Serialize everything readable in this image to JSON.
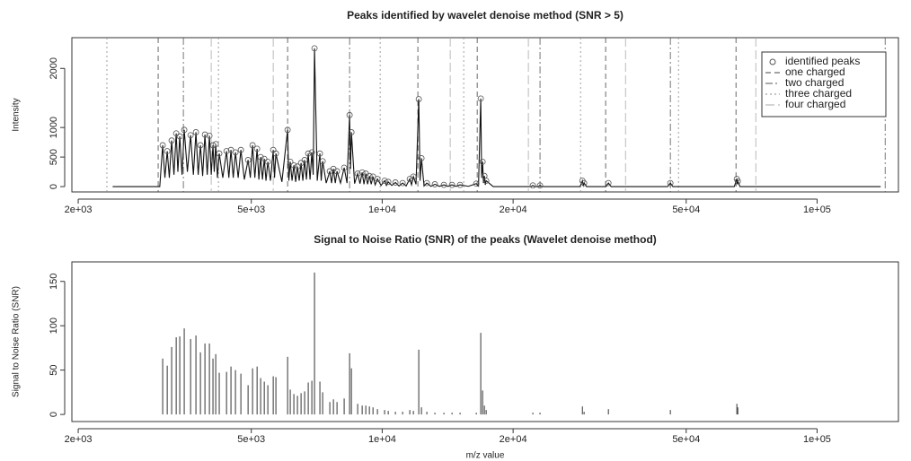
{
  "chart_data": [
    {
      "type": "line",
      "title": "Peaks identified by wavelet denoise method (SNR > 5)",
      "ylabel": "Intensity",
      "log_x": true,
      "xlim": [
        1934,
        153800
      ],
      "xticks": [
        {
          "value": 2000,
          "label": "2e+03"
        },
        {
          "value": 5000,
          "label": "5e+03"
        },
        {
          "value": 10000,
          "label": "1e+04"
        },
        {
          "value": 20000,
          "label": "2e+04"
        },
        {
          "value": 50000,
          "label": "5e+04"
        },
        {
          "value": 100000,
          "label": "1e+05"
        }
      ],
      "ylim": [
        -90,
        2520
      ],
      "yticks": [
        0,
        500,
        1000,
        2000
      ],
      "legend": "topright",
      "line": {
        "color": "#111111",
        "x": [
          2400,
          3080,
          3128,
          3165,
          3204,
          3240,
          3280,
          3320,
          3360,
          3390,
          3424,
          3465,
          3506,
          3565,
          3626,
          3680,
          3730,
          3775,
          3820,
          3865,
          3912,
          3960,
          4006,
          4045,
          4082,
          4110,
          4142,
          4180,
          4220,
          4300,
          4386,
          4440,
          4490,
          4545,
          4598,
          4665,
          4732,
          4820,
          4916,
          4975,
          5034,
          5095,
          5156,
          5205,
          5254,
          5305,
          5356,
          5405,
          5458,
          5535,
          5616,
          5655,
          5696,
          5880,
          6060,
          6100,
          6146,
          6205,
          6264,
          6325,
          6384,
          6445,
          6508,
          6570,
          6632,
          6695,
          6760,
          6825,
          6890,
          6940,
          6988,
          7090,
          7190,
          7240,
          7296,
          7435,
          7578,
          7650,
          7724,
          7800,
          7872,
          8020,
          8176,
          8300,
          8414,
          8455,
          8496,
          8640,
          8782,
          8890,
          8994,
          9080,
          9168,
          9255,
          9344,
          9435,
          9524,
          9635,
          9750,
          9940,
          10128,
          10225,
          10324,
          10520,
          10724,
          10930,
          11140,
          11350,
          11572,
          11680,
          11796,
          11960,
          12136,
          12220,
          12310,
          12480,
          12666,
          12940,
          13218,
          13540,
          13864,
          14170,
          14472,
          14780,
          15102,
          15780,
          16456,
          16650,
          16850,
          16930,
          17014,
          17095,
          17176,
          17260,
          17340,
          18000,
          22000,
          22200,
          22400,
          22850,
          23060,
          23300,
          28500,
          28860,
          29000,
          29120,
          29500,
          32700,
          33120,
          33600,
          45300,
          45980,
          46600,
          64500,
          65380,
          65540,
          65700,
          66500,
          140000
        ],
        "values": [
          0,
          0,
          700,
          150,
          600,
          150,
          780,
          200,
          900,
          250,
          850,
          200,
          960,
          250,
          870,
          200,
          920,
          200,
          700,
          180,
          880,
          200,
          860,
          200,
          700,
          250,
          720,
          150,
          560,
          150,
          600,
          150,
          620,
          150,
          580,
          150,
          620,
          120,
          450,
          150,
          700,
          150,
          640,
          120,
          500,
          120,
          470,
          100,
          420,
          100,
          620,
          150,
          560,
          80,
          960,
          100,
          420,
          100,
          360,
          80,
          340,
          100,
          400,
          100,
          450,
          120,
          560,
          120,
          580,
          200,
          2340,
          100,
          560,
          100,
          430,
          60,
          260,
          60,
          300,
          60,
          260,
          60,
          320,
          60,
          1210,
          300,
          920,
          50,
          220,
          50,
          240,
          40,
          220,
          40,
          180,
          40,
          170,
          30,
          130,
          20,
          100,
          20,
          80,
          20,
          70,
          10,
          60,
          10,
          130,
          30,
          170,
          40,
          1480,
          100,
          480,
          10,
          60,
          5,
          40,
          5,
          30,
          5,
          30,
          5,
          30,
          5,
          50,
          10,
          1490,
          150,
          420,
          60,
          180,
          30,
          100,
          0,
          0,
          20,
          0,
          0,
          20,
          0,
          0,
          100,
          20,
          60,
          0,
          0,
          60,
          0,
          0,
          60,
          0,
          0,
          130,
          40,
          90,
          0,
          0
        ]
      },
      "series": [
        {
          "name": "identified peaks",
          "color": "#555555",
          "x": [
            3128,
            3204,
            3280,
            3360,
            3424,
            3506,
            3626,
            3730,
            3820,
            3912,
            4006,
            4082,
            4142,
            4220,
            4386,
            4490,
            4598,
            4732,
            4916,
            5034,
            5156,
            5254,
            5356,
            5458,
            5616,
            5696,
            6060,
            6146,
            6264,
            6384,
            6508,
            6632,
            6760,
            6890,
            6988,
            7190,
            7296,
            7578,
            7724,
            7872,
            8176,
            8414,
            8496,
            8782,
            8994,
            9168,
            9344,
            9524,
            9750,
            10128,
            10324,
            10724,
            11140,
            11572,
            11796,
            12136,
            12310,
            12666,
            13218,
            13864,
            14472,
            15102,
            16456,
            16850,
            17014,
            17176,
            17340,
            22200,
            23060,
            28860,
            29120,
            33120,
            45980,
            65380,
            65700
          ],
          "values": [
            700,
            600,
            780,
            900,
            850,
            960,
            870,
            920,
            700,
            880,
            860,
            700,
            720,
            560,
            600,
            620,
            580,
            620,
            450,
            700,
            640,
            500,
            470,
            420,
            620,
            560,
            960,
            420,
            360,
            340,
            400,
            450,
            560,
            580,
            2340,
            560,
            430,
            260,
            300,
            260,
            320,
            1210,
            920,
            220,
            240,
            220,
            180,
            170,
            130,
            100,
            80,
            70,
            60,
            130,
            170,
            1480,
            480,
            60,
            40,
            30,
            30,
            30,
            50,
            1490,
            420,
            180,
            100,
            20,
            20,
            100,
            60,
            60,
            60,
            130,
            90
          ]
        }
      ],
      "markers": [
        {
          "name": "one charged",
          "color": "#444444",
          "dash": "6,4",
          "x": [
            3054,
            6060,
            12078,
            16536,
            32640,
            65080
          ]
        },
        {
          "name": "two charged",
          "color": "#555555",
          "dash": "8,3,2,3",
          "x": [
            3490,
            8414,
            23060,
            45980,
            143360
          ]
        },
        {
          "name": "three charged",
          "color": "#888888",
          "dash": "2,3",
          "x": [
            2328,
            4202,
            9892,
            15396,
            28580,
            48000
          ]
        },
        {
          "name": "four charged",
          "color": "#aaaaaa",
          "dash": "10,4",
          "x": [
            4044,
            5616,
            14334,
            21680,
            36260,
            72280
          ]
        }
      ]
    },
    {
      "type": "bar",
      "title": "Signal to Noise Ratio (SNR) of the peaks (Wavelet denoise method)",
      "ylabel": "Signal to Noise Ratio (SNR)",
      "xlabel": "m/z value",
      "log_x": true,
      "xlim": [
        1934,
        153800
      ],
      "xticks": [
        {
          "value": 2000,
          "label": "2e+03"
        },
        {
          "value": 5000,
          "label": "5e+03"
        },
        {
          "value": 10000,
          "label": "1e+04"
        },
        {
          "value": 20000,
          "label": "2e+04"
        },
        {
          "value": 50000,
          "label": "5e+04"
        },
        {
          "value": 100000,
          "label": "1e+05"
        }
      ],
      "ylim": [
        -8,
        172
      ],
      "yticks": [
        0,
        50,
        100,
        150
      ],
      "color": "#333333",
      "x": [
        3128,
        3204,
        3280,
        3360,
        3424,
        3506,
        3626,
        3730,
        3820,
        3912,
        4006,
        4082,
        4142,
        4220,
        4386,
        4490,
        4598,
        4732,
        4916,
        5034,
        5156,
        5254,
        5356,
        5458,
        5616,
        5696,
        6060,
        6146,
        6264,
        6384,
        6508,
        6632,
        6760,
        6890,
        6988,
        7190,
        7296,
        7578,
        7724,
        7872,
        8176,
        8414,
        8496,
        8782,
        8994,
        9168,
        9344,
        9524,
        9750,
        10128,
        10324,
        10724,
        11140,
        11572,
        11796,
        12136,
        12310,
        12666,
        13218,
        13864,
        14472,
        15102,
        16456,
        16850,
        17014,
        17176,
        17340,
        22200,
        23060,
        28860,
        29120,
        33120,
        45980,
        65380,
        65700
      ],
      "values": [
        63,
        55,
        76,
        87,
        88,
        97,
        85,
        89,
        70,
        80,
        80,
        63,
        68,
        47,
        48,
        54,
        50,
        46,
        33,
        52,
        54,
        41,
        37,
        33,
        43,
        42,
        65,
        28,
        23,
        21,
        24,
        26,
        36,
        38,
        160,
        37,
        25,
        14,
        17,
        14,
        18,
        69,
        52,
        12,
        10,
        10,
        9,
        8,
        6,
        5,
        4,
        3,
        3,
        5,
        4,
        73,
        8,
        3,
        2,
        2,
        2,
        2,
        2,
        92,
        27,
        10,
        5,
        2,
        2,
        9,
        3,
        6,
        5,
        12,
        8
      ]
    }
  ]
}
